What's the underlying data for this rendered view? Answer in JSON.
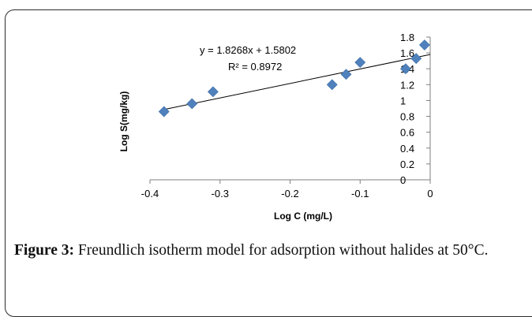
{
  "chart_data": {
    "type": "scatter",
    "xlabel": "Log C (mg/L)",
    "ylabel": "Log S(mg/kg)",
    "xlim": [
      -0.4,
      0
    ],
    "ylim": [
      0,
      1.8
    ],
    "x_ticks": [
      "-0.4",
      "-0.3",
      "-0.2",
      "-0.1",
      "0"
    ],
    "y_ticks": [
      "0",
      "0.2",
      "0.4",
      "0.6",
      "0.8",
      "1",
      "1.2",
      "1.4",
      "1.6",
      "1.8"
    ],
    "marker_color": "#4f81bd",
    "points": [
      {
        "x": -0.38,
        "y": 0.86
      },
      {
        "x": -0.34,
        "y": 0.96
      },
      {
        "x": -0.31,
        "y": 1.11
      },
      {
        "x": -0.14,
        "y": 1.2
      },
      {
        "x": -0.12,
        "y": 1.33
      },
      {
        "x": -0.1,
        "y": 1.48
      },
      {
        "x": -0.035,
        "y": 1.4
      },
      {
        "x": -0.02,
        "y": 1.53
      },
      {
        "x": -0.008,
        "y": 1.7
      }
    ],
    "trendline": {
      "slope": 1.8268,
      "intercept": 1.5802,
      "x_range": [
        -0.38,
        0
      ]
    },
    "equation": "y = 1.8268x + 1.5802",
    "r_squared": "R² = 0.8972"
  },
  "caption": {
    "label": "Figure 3:",
    "text": " Freundlich isotherm model for adsorption without halides at 50°C."
  }
}
